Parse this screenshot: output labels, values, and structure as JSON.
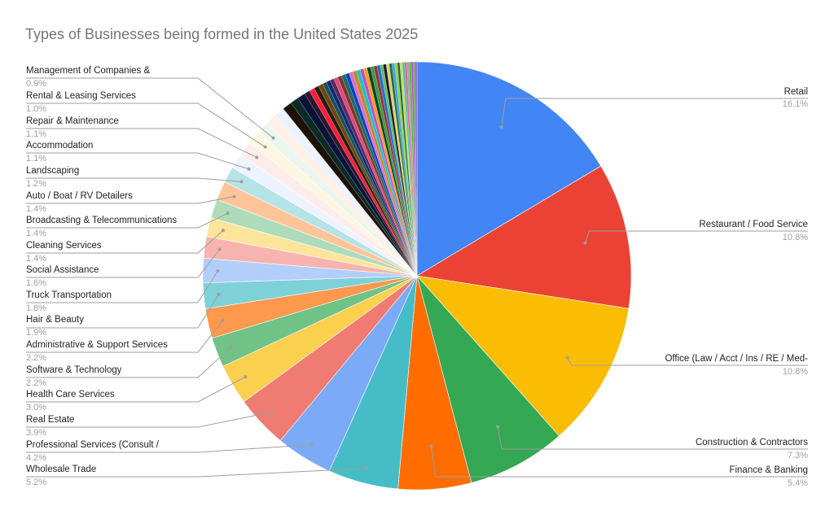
{
  "chart_data": {
    "type": "pie",
    "title": "Types of Businesses being formed in the United States 2025",
    "start_angle_deg": 0,
    "direction": "clockwise",
    "labeled_slices": [
      {
        "label": "Retail",
        "value": 16.1,
        "color": "#4285f4"
      },
      {
        "label": "Restaurant / Food Service",
        "value": 10.8,
        "color": "#ea4335"
      },
      {
        "label": "Office (Law / Acct / Ins / RE / Med-",
        "value": 10.8,
        "color": "#fbbc04"
      },
      {
        "label": "Construction & Contractors",
        "value": 7.3,
        "color": "#34a853"
      },
      {
        "label": "Finance & Banking",
        "value": 5.4,
        "color": "#ff6d01"
      },
      {
        "label": "Wholesale Trade",
        "value": 5.2,
        "color": "#46bdc6"
      },
      {
        "label": "Professional Services (Consult /",
        "value": 4.2,
        "color": "#7baaf7"
      },
      {
        "label": "Real Estate",
        "value": 3.9,
        "color": "#f07b72"
      },
      {
        "label": "Health Care Services",
        "value": 3.0,
        "color": "#fcd04f"
      },
      {
        "label": "Software & Technology",
        "value": 2.2,
        "color": "#71c287"
      },
      {
        "label": "Administrative & Support Services",
        "value": 2.2,
        "color": "#ff994d"
      },
      {
        "label": "Hair & Beauty",
        "value": 1.9,
        "color": "#7ed1d7"
      },
      {
        "label": "Truck Transportation",
        "value": 1.8,
        "color": "#b3cefb"
      },
      {
        "label": "Social Assistance",
        "value": 1.6,
        "color": "#f7b4ae"
      },
      {
        "label": "Cleaning Services",
        "value": 1.4,
        "color": "#fde49b"
      },
      {
        "label": "Broadcasting & Telecommunications",
        "value": 1.4,
        "color": "#aedcba"
      },
      {
        "label": "Auto / Boat / RV Detailers",
        "value": 1.4,
        "color": "#ffc599"
      },
      {
        "label": "Landscaping",
        "value": 1.2,
        "color": "#b6e3e6"
      },
      {
        "label": "Accommodation",
        "value": 1.1,
        "color": "#ecf3fe"
      },
      {
        "label": "Repair & Maintenance",
        "value": 1.1,
        "color": "#fdeceb"
      },
      {
        "label": "Rental & Leasing Services",
        "value": 1.0,
        "color": "#fef6e1"
      },
      {
        "label": "Management of Companies &",
        "value": 0.9,
        "color": "#ebf6ee"
      }
    ],
    "unlabeled_slices": [
      {
        "value": 0.8,
        "color": "#fff0e6"
      },
      {
        "value": 0.8,
        "color": "#edf3fd"
      },
      {
        "value": 0.7,
        "color": "#1c1208"
      },
      {
        "value": 0.6,
        "color": "#0c2a26"
      },
      {
        "value": 0.6,
        "color": "#0a1238"
      },
      {
        "value": 0.4,
        "color": "#2a1630"
      },
      {
        "value": 0.4,
        "color": "#ff1f3a"
      },
      {
        "value": 0.35,
        "color": "#2a1a10"
      },
      {
        "value": 0.35,
        "color": "#6a4a10"
      },
      {
        "value": 0.3,
        "color": "#1a5060"
      },
      {
        "value": 0.3,
        "color": "#102a70"
      },
      {
        "value": 0.3,
        "color": "#5a2860"
      },
      {
        "value": 0.3,
        "color": "#e04880"
      },
      {
        "value": 0.3,
        "color": "#7a3a20"
      },
      {
        "value": 0.3,
        "color": "#1a6a70"
      },
      {
        "value": 0.28,
        "color": "#1040c0"
      },
      {
        "value": 0.28,
        "color": "#e070c0"
      },
      {
        "value": 0.28,
        "color": "#c08a20"
      },
      {
        "value": 0.28,
        "color": "#20c0d0"
      },
      {
        "value": 0.26,
        "color": "#c050c0"
      },
      {
        "value": 0.26,
        "color": "#f0a020"
      },
      {
        "value": 0.26,
        "color": "#10402a"
      },
      {
        "value": 0.24,
        "color": "#30a040"
      },
      {
        "value": 0.24,
        "color": "#a03030"
      },
      {
        "value": 0.24,
        "color": "#2070d0"
      },
      {
        "value": 0.22,
        "color": "#60c060"
      },
      {
        "value": 0.22,
        "color": "#201830"
      },
      {
        "value": 0.22,
        "color": "#e0d070"
      },
      {
        "value": 0.2,
        "color": "#207040"
      },
      {
        "value": 0.2,
        "color": "#40a0e0"
      },
      {
        "value": 0.2,
        "color": "#90d050"
      },
      {
        "value": 0.18,
        "color": "#306030"
      },
      {
        "value": 0.18,
        "color": "#c0e060"
      },
      {
        "value": 0.18,
        "color": "#50c0a0"
      },
      {
        "value": 0.16,
        "color": "#e060a0"
      },
      {
        "value": 0.16,
        "color": "#a0a0a0"
      },
      {
        "value": 0.16,
        "color": "#40c040"
      },
      {
        "value": 0.14,
        "color": "#d040d0"
      },
      {
        "value": 0.14,
        "color": "#60a060"
      },
      {
        "value": 0.14,
        "color": "#9060e0"
      }
    ]
  },
  "labels": {
    "right": [
      {
        "name": "Retail",
        "pct": "16.1%"
      },
      {
        "name": "Restaurant / Food Service",
        "pct": "10.8%"
      },
      {
        "name": "Office (Law / Acct / Ins / RE / Med-",
        "pct": "10.8%"
      },
      {
        "name": "Construction & Contractors",
        "pct": "7.3%"
      },
      {
        "name": "Finance & Banking",
        "pct": "5.4%"
      }
    ],
    "left": [
      {
        "name": "Management of Companies &",
        "pct": "0.9%"
      },
      {
        "name": "Rental & Leasing Services",
        "pct": "1.0%"
      },
      {
        "name": "Repair & Maintenance",
        "pct": "1.1%"
      },
      {
        "name": "Accommodation",
        "pct": "1.1%"
      },
      {
        "name": "Landscaping",
        "pct": "1.2%"
      },
      {
        "name": "Auto / Boat / RV Detailers",
        "pct": "1.4%"
      },
      {
        "name": "Broadcasting & Telecommunications",
        "pct": "1.4%"
      },
      {
        "name": "Cleaning Services",
        "pct": "1.4%"
      },
      {
        "name": "Social Assistance",
        "pct": "1.6%"
      },
      {
        "name": "Truck Transportation",
        "pct": "1.8%"
      },
      {
        "name": "Hair & Beauty",
        "pct": "1.9%"
      },
      {
        "name": "Administrative & Support Services",
        "pct": "2.2%"
      },
      {
        "name": "Software & Technology",
        "pct": "2.2%"
      },
      {
        "name": "Health Care Services",
        "pct": "3.0%"
      },
      {
        "name": "Real Estate",
        "pct": "3.9%"
      },
      {
        "name": "Professional Services (Consult /",
        "pct": "4.2%"
      },
      {
        "name": "Wholesale Trade",
        "pct": "5.2%"
      }
    ]
  }
}
